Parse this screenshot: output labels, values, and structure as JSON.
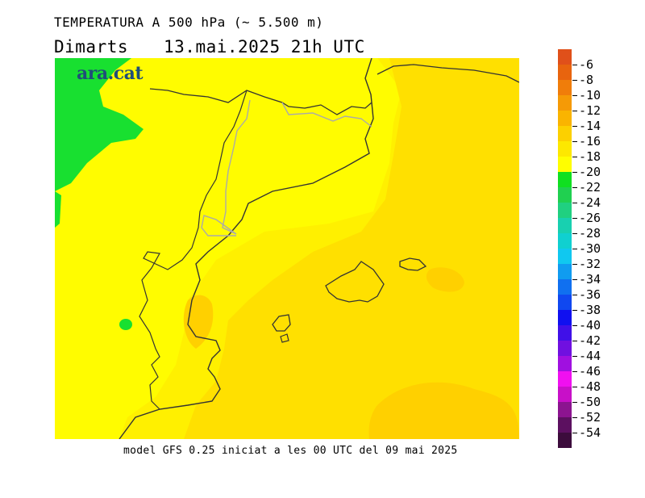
{
  "header": {
    "title": "TEMPERATURA A 500 hPa (~ 5.500 m)",
    "day": "Dimarts",
    "datetime": "13.mai.2025 21h UTC"
  },
  "logo": {
    "text": "ara.cat"
  },
  "footer": {
    "text": "model GFS 0.25 iniciat a les 00 UTC del 09 mai 2025"
  },
  "legend": {
    "labels": [
      "-6",
      "-8",
      "-10",
      "-12",
      "-14",
      "-16",
      "-18",
      "-20",
      "-22",
      "-24",
      "-26",
      "-28",
      "-30",
      "-32",
      "-34",
      "-36",
      "-38",
      "-40",
      "-42",
      "-44",
      "-46",
      "-48",
      "-50",
      "-52",
      "-54"
    ],
    "colors": [
      "#e0501a",
      "#e8640e",
      "#f07d0a",
      "#f59a06",
      "#fab400",
      "#fcd000",
      "#fde800",
      "#fffe00",
      "#10e020",
      "#20d050",
      "#20d080",
      "#18d0b0",
      "#10d0d0",
      "#10c8f0",
      "#109cf0",
      "#1070f0",
      "#1048f0",
      "#1010f0",
      "#4010e8",
      "#7010e0",
      "#a010e0",
      "#f010f0",
      "#c810c8",
      "#8c1490",
      "#5c1060",
      "#3c0c3c"
    ]
  },
  "map": {
    "colors": {
      "yellow_light": "#fffc00",
      "yellow": "#fff000",
      "yellow_orange": "#ffe000",
      "orange_light": "#ffd000",
      "green": "#18e030",
      "coast": "#333333",
      "border": "#aaaaaa"
    }
  }
}
